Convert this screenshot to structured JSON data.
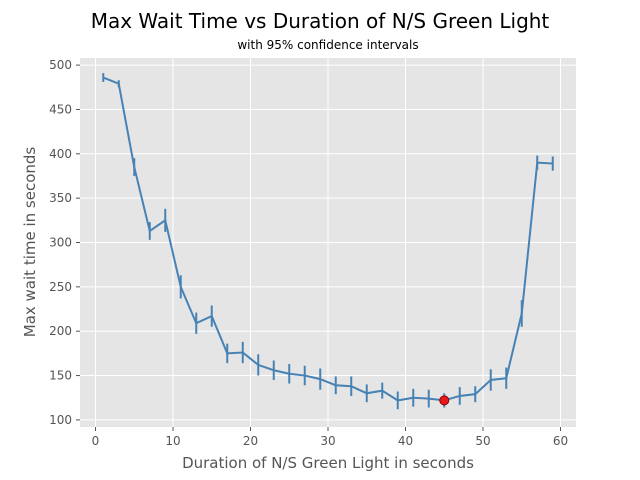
{
  "chart_data": {
    "type": "line",
    "title": "Max Wait Time vs Duration of N/S Green Light",
    "subtitle": "with 95% confidence intervals",
    "xlabel": "Duration of N/S Green Light in seconds",
    "ylabel": "Max wait time in seconds",
    "xlim": [
      -2,
      62
    ],
    "ylim": [
      92,
      508
    ],
    "xticks": [
      0,
      10,
      20,
      30,
      40,
      50,
      60
    ],
    "yticks": [
      100,
      150,
      200,
      250,
      300,
      350,
      400,
      450,
      500
    ],
    "grid": true,
    "background": "#e5e5e5",
    "line_color": "#4682b4",
    "highlight_color": "#e8191e",
    "series": [
      {
        "x": [
          1,
          3,
          5,
          7,
          9,
          11,
          13,
          15,
          17,
          19,
          21,
          23,
          25,
          27,
          29,
          31,
          33,
          35,
          37,
          39,
          41,
          43,
          45,
          47,
          49,
          51,
          53,
          55,
          57,
          59
        ],
        "values": [
          486,
          479,
          385,
          313,
          325,
          250,
          209,
          217,
          175,
          176,
          162,
          156,
          152,
          150,
          146,
          139,
          138,
          130,
          133,
          122,
          125,
          124,
          122,
          127,
          129,
          145,
          147,
          220,
          390,
          389
        ],
        "err": [
          5,
          4,
          10,
          10,
          13,
          13,
          12,
          12,
          11,
          12,
          12,
          11,
          11,
          11,
          12,
          10,
          11,
          10,
          9,
          10,
          10,
          10,
          8,
          10,
          9,
          12,
          12,
          15,
          8,
          8
        ]
      }
    ],
    "highlight": {
      "x": 45,
      "y": 122
    }
  }
}
